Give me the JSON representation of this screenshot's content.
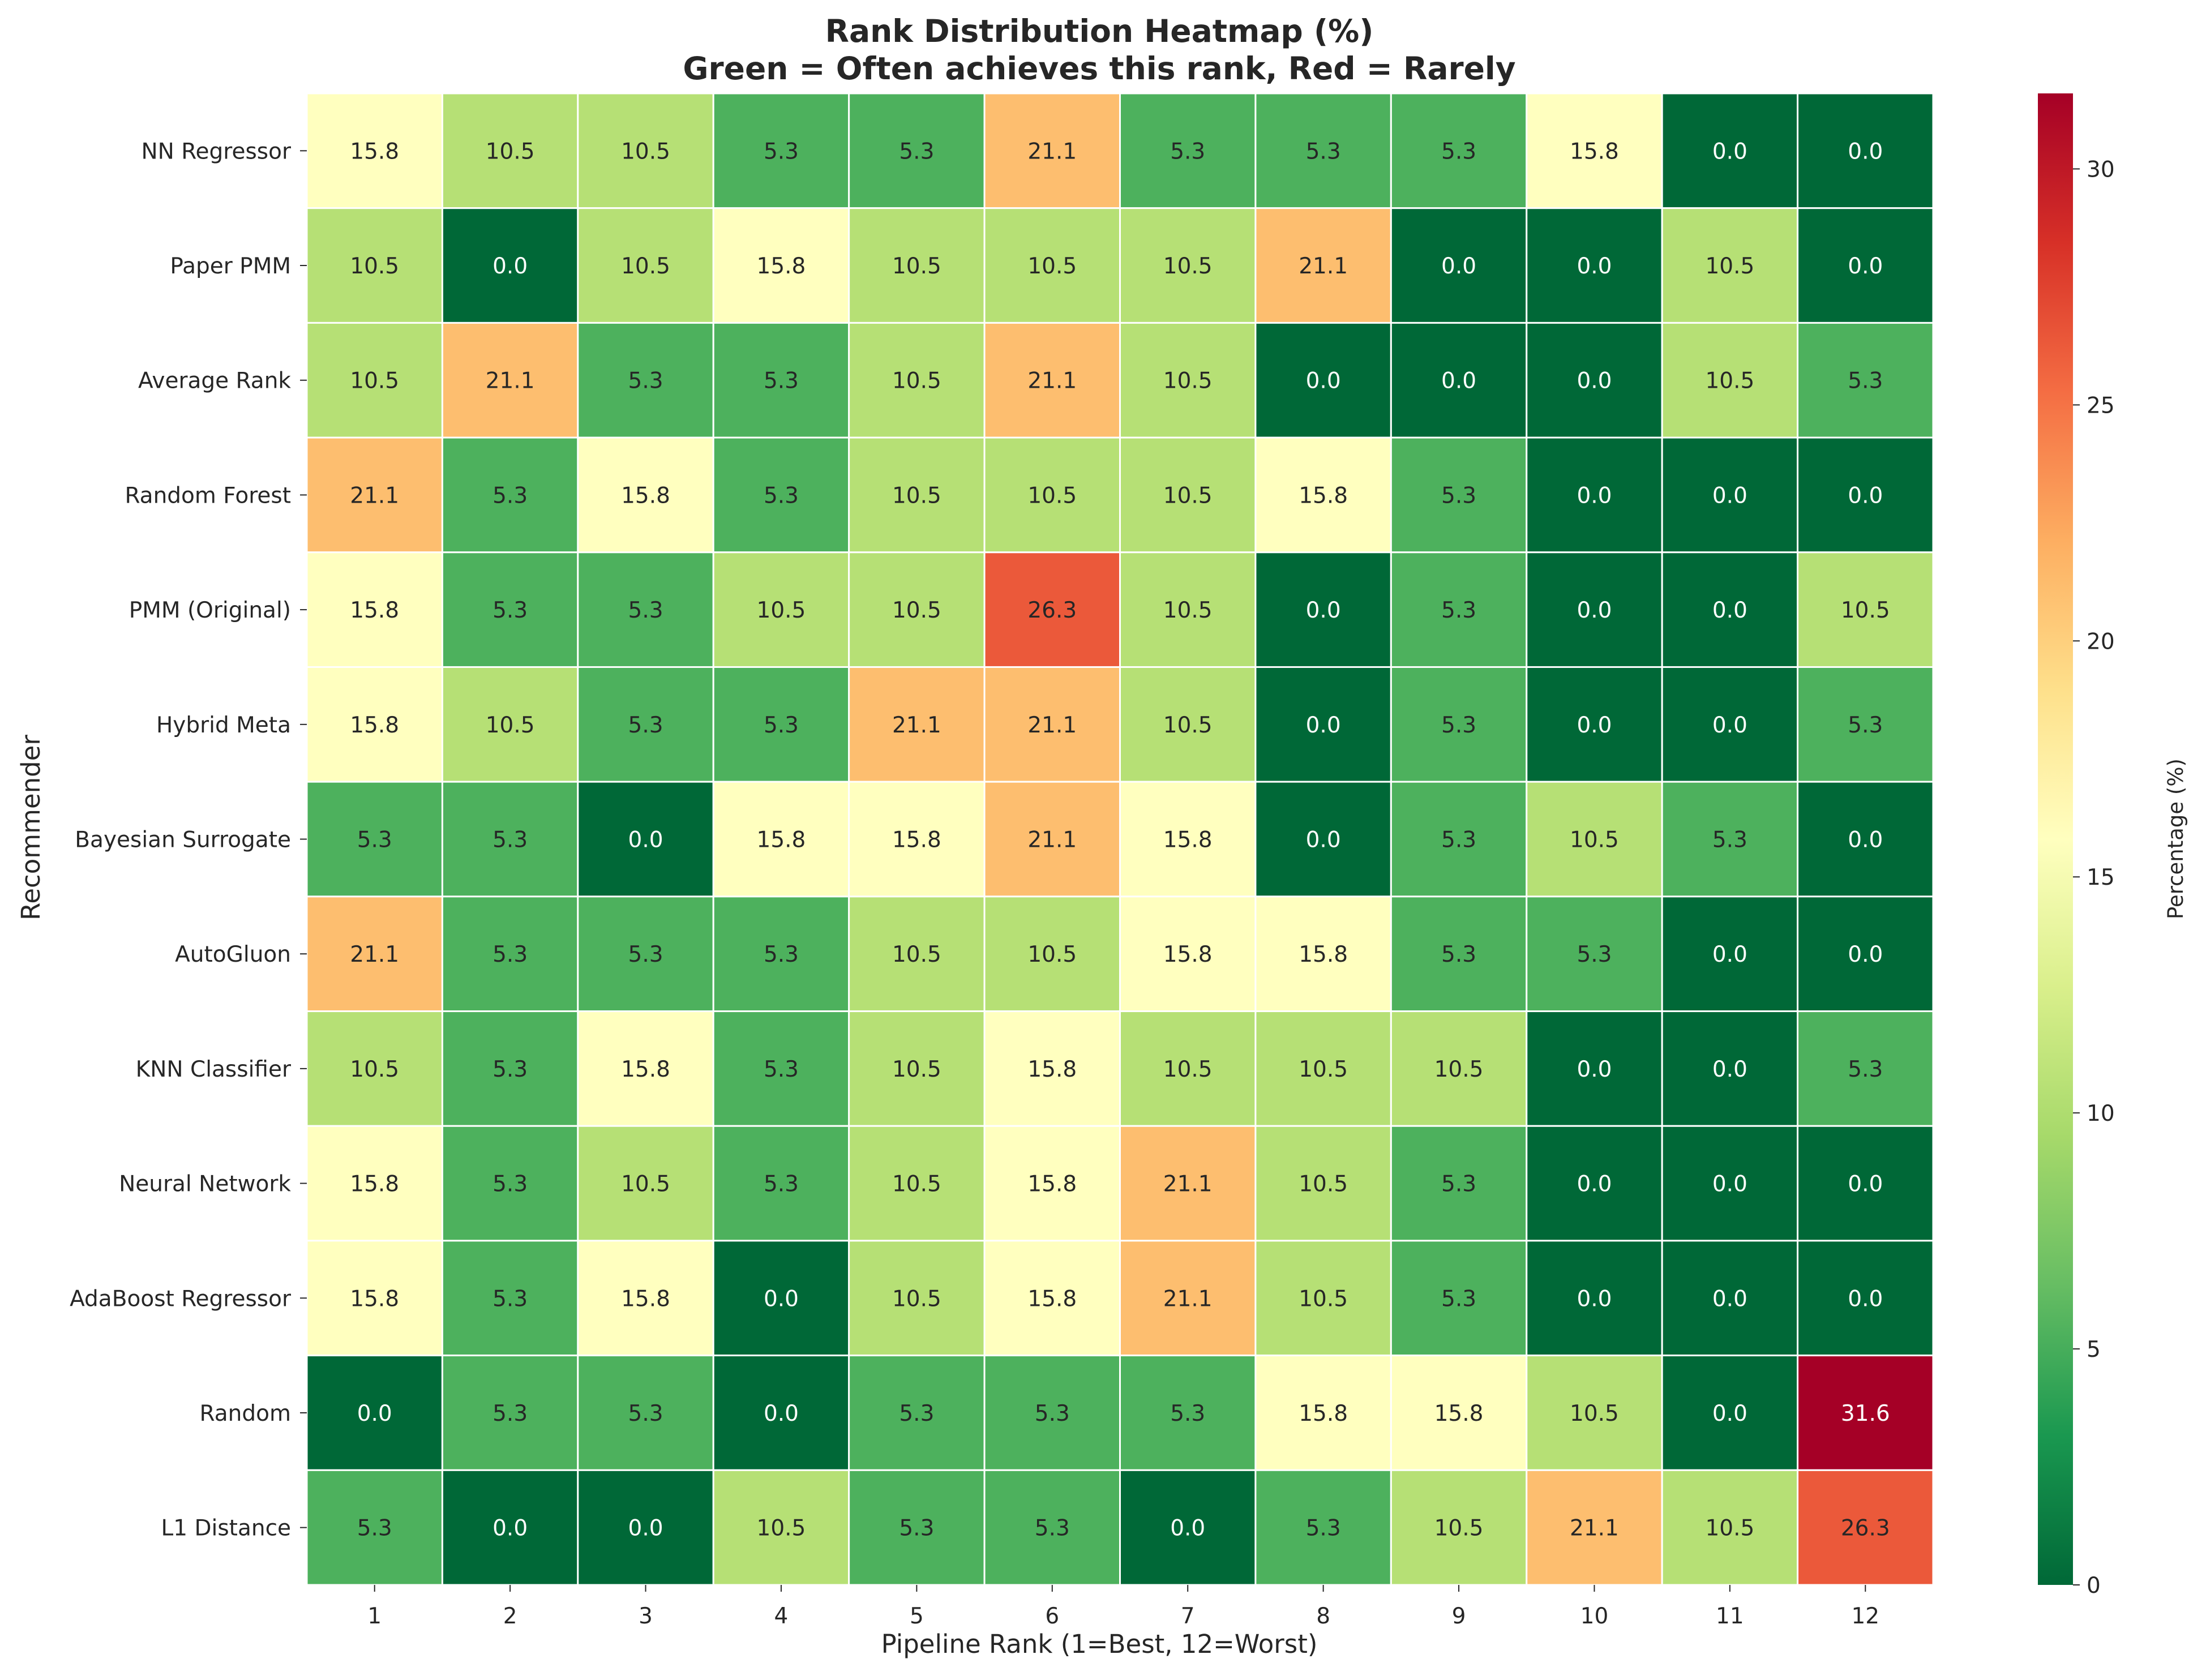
{
  "chart_data": {
    "type": "heatmap",
    "title_lines": [
      "Rank Distribution Heatmap (%)",
      "Green = Often achieves this rank, Red = Rarely"
    ],
    "xlabel": "Pipeline Rank (1=Best, 12=Worst)",
    "ylabel": "Recommender",
    "x_categories": [
      "1",
      "2",
      "3",
      "4",
      "5",
      "6",
      "7",
      "8",
      "9",
      "10",
      "11",
      "12"
    ],
    "y_categories": [
      "NN Regressor",
      "Paper PMM",
      "Average Rank",
      "Random Forest",
      "PMM (Original)",
      "Hybrid Meta",
      "Bayesian Surrogate",
      "AutoGluon",
      "KNN Classifier",
      "Neural Network",
      "AdaBoost Regressor",
      "Random",
      "L1 Distance"
    ],
    "values": [
      [
        15.8,
        10.5,
        10.5,
        5.3,
        5.3,
        21.1,
        5.3,
        5.3,
        5.3,
        15.8,
        0.0,
        0.0
      ],
      [
        10.5,
        0.0,
        10.5,
        15.8,
        10.5,
        10.5,
        10.5,
        21.1,
        0.0,
        0.0,
        10.5,
        0.0
      ],
      [
        10.5,
        21.1,
        5.3,
        5.3,
        10.5,
        21.1,
        10.5,
        0.0,
        0.0,
        0.0,
        10.5,
        5.3
      ],
      [
        21.1,
        5.3,
        15.8,
        5.3,
        10.5,
        10.5,
        10.5,
        15.8,
        5.3,
        0.0,
        0.0,
        0.0
      ],
      [
        15.8,
        5.3,
        5.3,
        10.5,
        10.5,
        26.3,
        10.5,
        0.0,
        5.3,
        0.0,
        0.0,
        10.5
      ],
      [
        15.8,
        10.5,
        5.3,
        5.3,
        21.1,
        21.1,
        10.5,
        0.0,
        5.3,
        0.0,
        0.0,
        5.3
      ],
      [
        5.3,
        5.3,
        0.0,
        15.8,
        15.8,
        21.1,
        15.8,
        0.0,
        5.3,
        10.5,
        5.3,
        0.0
      ],
      [
        21.1,
        5.3,
        5.3,
        5.3,
        10.5,
        10.5,
        15.8,
        15.8,
        5.3,
        5.3,
        0.0,
        0.0
      ],
      [
        10.5,
        5.3,
        15.8,
        5.3,
        10.5,
        15.8,
        10.5,
        10.5,
        10.5,
        0.0,
        0.0,
        5.3
      ],
      [
        15.8,
        5.3,
        10.5,
        5.3,
        10.5,
        15.8,
        21.1,
        10.5,
        5.3,
        0.0,
        0.0,
        0.0
      ],
      [
        15.8,
        5.3,
        15.8,
        0.0,
        10.5,
        15.8,
        21.1,
        10.5,
        5.3,
        0.0,
        0.0,
        0.0
      ],
      [
        0.0,
        5.3,
        5.3,
        0.0,
        5.3,
        5.3,
        5.3,
        15.8,
        15.8,
        10.5,
        0.0,
        31.6
      ],
      [
        5.3,
        0.0,
        0.0,
        10.5,
        5.3,
        5.3,
        0.0,
        5.3,
        10.5,
        21.1,
        10.5,
        26.3
      ]
    ],
    "colormap": "RdYlGn_r",
    "color_stops": [
      "#006837",
      "#1a9850",
      "#66bd63",
      "#a6d96a",
      "#d9ef8b",
      "#ffffbf",
      "#fee08b",
      "#fdae61",
      "#f46d43",
      "#d73027",
      "#a50026"
    ],
    "value_range": [
      0,
      31.6
    ],
    "colorbar": {
      "label": "Percentage (%)",
      "ticks": [
        0,
        5,
        10,
        15,
        20,
        25,
        30
      ]
    },
    "annotation_format": "0.0",
    "grid_line_color": "#ffffff"
  }
}
